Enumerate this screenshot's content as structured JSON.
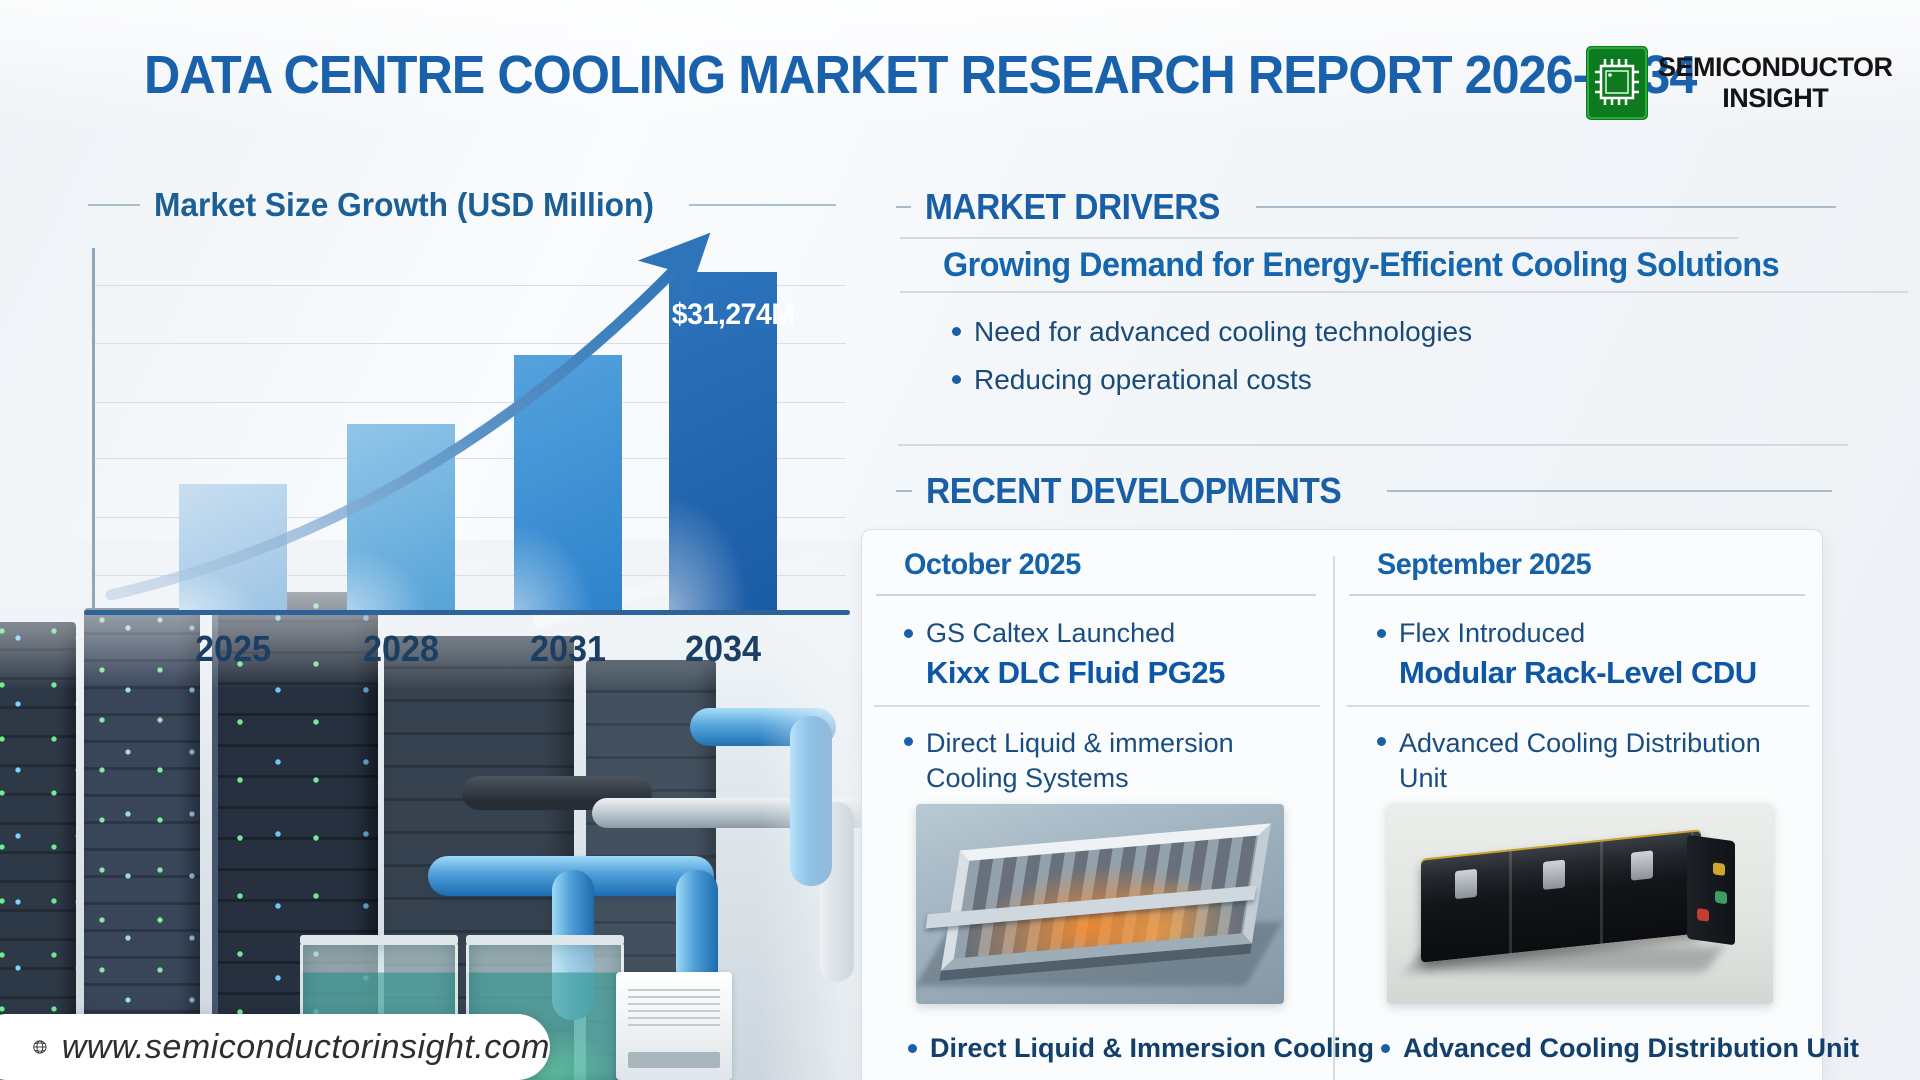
{
  "header": {
    "title": "DATA CENTRE COOLING MARKET RESEARCH REPORT 2026-2034",
    "logo": {
      "icon": "chip-icon",
      "line1": "SEMICONDUCTOR",
      "line2": "INSIGHT"
    }
  },
  "chart_data": {
    "type": "bar",
    "title": "Market Size Growth (USD Million)",
    "categories": [
      "2025",
      "2028",
      "2031",
      "2034"
    ],
    "values": [
      11800,
      17300,
      23600,
      31274
    ],
    "value_labels": [
      "",
      "",
      "",
      "$31,274M"
    ],
    "ylim": [
      0,
      34000
    ],
    "xlabel": "",
    "ylabel": "",
    "grid": true,
    "legend": false,
    "bar_colors": [
      [
        "#c9dff1",
        "#9cc4e4"
      ],
      [
        "#92c6e9",
        "#55a3d7"
      ],
      [
        "#55a2dd",
        "#2c82cb"
      ],
      [
        "#2d74bc",
        "#1a5ba5"
      ]
    ],
    "annotations": [
      "upward curved trend arrow from 2025 toward 2034"
    ]
  },
  "market_drivers": {
    "heading": "MARKET DRIVERS",
    "subheading": "Growing Demand for Energy-Efficient Cooling Solutions",
    "bullets": [
      "Need for advanced cooling technologies",
      "Reducing operational costs"
    ]
  },
  "recent_developments": {
    "heading": "RECENT DEVELOPMENTS",
    "columns": [
      {
        "month": "October 2025",
        "item_intro": "GS Caltex Launched",
        "item_name": "Kixx DLC Fluid PG25",
        "item_detail": "Direct Liquid & immersion Cooling Systems",
        "image": "immersion-cooling-tray-photo",
        "caption": "Direct Liquid & Immersion Cooling"
      },
      {
        "month": "September 2025",
        "item_intro": "Flex Introduced",
        "item_name": "Modular Rack-Level CDU",
        "item_detail": "Advanced Cooling Distribution Unit",
        "image": "black-cdu-module-photo",
        "caption": "Advanced Cooling Distribution Unit"
      }
    ]
  },
  "footer": {
    "icon": "globe-icon",
    "website": "www.semiconductorinsight.com"
  },
  "colors": {
    "title_blue": "#1a61ac",
    "heading_blue": "#1566ad",
    "text_navy": "#1b4a78",
    "axis_blue": "#2d6399",
    "arrow_blue": "#2e74b8",
    "logo_green": "#1f9c2c"
  }
}
